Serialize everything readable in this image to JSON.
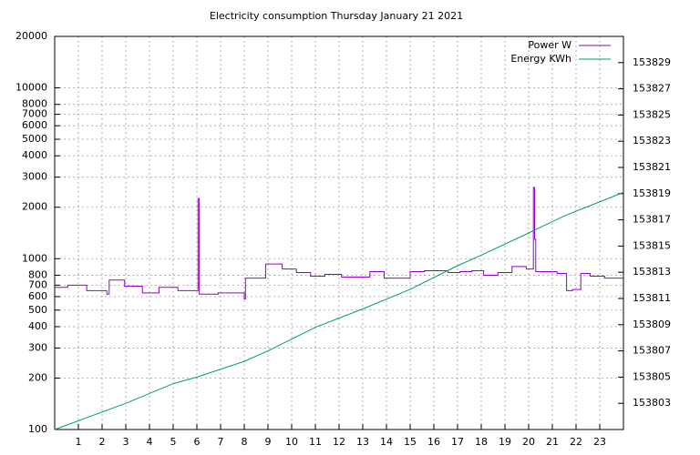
{
  "chart_data": {
    "type": "line",
    "title": "Electricity consumption Thursday January 21 2021",
    "xlim": [
      0,
      24
    ],
    "xticks": [
      1,
      2,
      3,
      4,
      5,
      6,
      7,
      8,
      9,
      10,
      11,
      12,
      13,
      14,
      15,
      16,
      17,
      18,
      19,
      20,
      21,
      22,
      23
    ],
    "ylim": [
      100,
      20000
    ],
    "log_y": true,
    "yticks": [
      100,
      200,
      300,
      400,
      500,
      600,
      700,
      800,
      1000,
      2000,
      3000,
      4000,
      5000,
      6000,
      7000,
      8000,
      10000,
      20000
    ],
    "y2lim": [
      153801,
      153831
    ],
    "y2ticks": [
      153803,
      153805,
      153807,
      153809,
      153811,
      153813,
      153815,
      153817,
      153819,
      153821,
      153823,
      153825,
      153827,
      153829
    ],
    "grid": true,
    "legend": "top-right",
    "series": [
      {
        "name": "Power W",
        "color": "#9400d3",
        "step": true,
        "x": [
          0,
          0.55,
          1.35,
          2.2,
          2.3,
          2.95,
          3.7,
          4.4,
          5.2,
          6.05,
          6.1,
          6.9,
          8.0,
          8.05,
          8.9,
          9.6,
          10.2,
          10.8,
          11.4,
          12.1,
          13.3,
          13.9,
          15,
          15.6,
          16.6,
          17.1,
          17.6,
          18.1,
          18.7,
          19.3,
          19.9,
          20.2,
          20.25,
          20.3,
          21.2,
          21.6,
          21.85,
          22.2,
          22.6,
          23.2,
          24
        ],
        "values": [
          680,
          700,
          650,
          620,
          750,
          690,
          630,
          680,
          650,
          2250,
          620,
          630,
          580,
          770,
          930,
          870,
          830,
          790,
          810,
          780,
          840,
          770,
          840,
          850,
          830,
          840,
          850,
          800,
          830,
          900,
          870,
          2610,
          1300,
          840,
          820,
          650,
          660,
          820,
          790,
          770,
          770
        ]
      },
      {
        "name": "Energy KWh",
        "color": "#009e73",
        "axis": "y2",
        "x": [
          0,
          3,
          5,
          6,
          8,
          9,
          11,
          13,
          15,
          17,
          18,
          20,
          21.5,
          24
        ],
        "values": [
          153801,
          153803,
          153804.5,
          153805,
          153806.2,
          153807,
          153808.8,
          153810.2,
          153811.7,
          153813.5,
          153814.3,
          153816,
          153817.3,
          153819.1
        ]
      }
    ]
  }
}
